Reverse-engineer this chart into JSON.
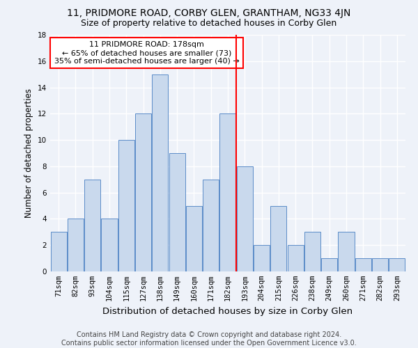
{
  "title": "11, PRIDMORE ROAD, CORBY GLEN, GRANTHAM, NG33 4JN",
  "subtitle": "Size of property relative to detached houses in Corby Glen",
  "xlabel": "Distribution of detached houses by size in Corby Glen",
  "ylabel": "Number of detached properties",
  "categories": [
    "71sqm",
    "82sqm",
    "93sqm",
    "104sqm",
    "115sqm",
    "127sqm",
    "138sqm",
    "149sqm",
    "160sqm",
    "171sqm",
    "182sqm",
    "193sqm",
    "204sqm",
    "215sqm",
    "226sqm",
    "238sqm",
    "249sqm",
    "260sqm",
    "271sqm",
    "282sqm",
    "293sqm"
  ],
  "values": [
    3,
    4,
    7,
    4,
    10,
    12,
    15,
    9,
    5,
    7,
    12,
    8,
    2,
    5,
    2,
    3,
    1,
    3,
    1,
    1,
    1
  ],
  "bar_color": "#c9d9ed",
  "bar_edge_color": "#5b8cc8",
  "vline_x": 10.5,
  "vline_color": "red",
  "annotation_text": "11 PRIDMORE ROAD: 178sqm\n← 65% of detached houses are smaller (73)\n35% of semi-detached houses are larger (40) →",
  "annotation_box_color": "white",
  "annotation_box_edge_color": "red",
  "ylim": [
    0,
    18
  ],
  "yticks": [
    0,
    2,
    4,
    6,
    8,
    10,
    12,
    14,
    16,
    18
  ],
  "footer": "Contains HM Land Registry data © Crown copyright and database right 2024.\nContains public sector information licensed under the Open Government Licence v3.0.",
  "background_color": "#eef2f9",
  "grid_color": "#ffffff",
  "title_fontsize": 10,
  "subtitle_fontsize": 9,
  "xlabel_fontsize": 9.5,
  "ylabel_fontsize": 8.5,
  "tick_fontsize": 7.5,
  "footer_fontsize": 7,
  "annotation_fontsize": 8
}
